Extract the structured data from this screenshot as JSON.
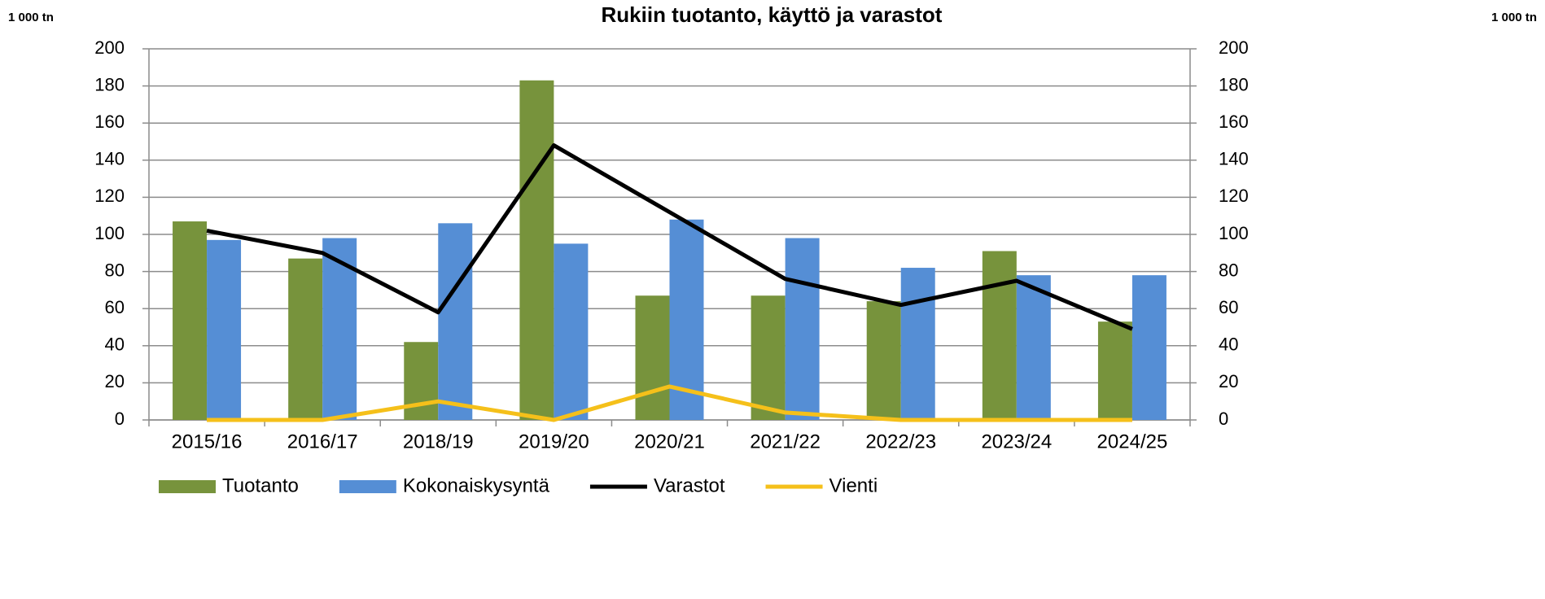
{
  "chart_data": {
    "type": "bar",
    "title": "Rukiin tuotanto, käyttö ja varastot",
    "y_label": "1 000 tn",
    "y2_label": "1 000 tn",
    "categories": [
      "2015/16",
      "2016/17",
      "2018/19",
      "2019/20",
      "2020/21",
      "2021/22",
      "2022/23",
      "2023/24",
      "2024/25"
    ],
    "series": [
      {
        "name": "Tuotanto",
        "type": "bar",
        "color": "#77933c",
        "values": [
          107,
          87,
          42,
          183,
          67,
          67,
          64,
          91,
          53
        ]
      },
      {
        "name": "Kokonaiskysyntä",
        "type": "bar",
        "color": "#558ed5",
        "values": [
          97,
          98,
          106,
          95,
          108,
          98,
          82,
          78,
          78
        ]
      },
      {
        "name": "Varastot",
        "type": "line",
        "color": "#000000",
        "values": [
          102,
          90,
          58,
          148,
          112,
          76,
          62,
          75,
          49
        ]
      },
      {
        "name": "Vienti",
        "type": "line",
        "color": "#f5c01a",
        "values": [
          0,
          0,
          10,
          0,
          18,
          4,
          0,
          0,
          0
        ]
      }
    ],
    "ylim": [
      0,
      200
    ],
    "yticks": [
      0,
      20,
      40,
      60,
      80,
      100,
      120,
      140,
      160,
      180,
      200
    ],
    "y2lim": [
      0,
      200
    ],
    "y2ticks": [
      0,
      20,
      40,
      60,
      80,
      100,
      120,
      140,
      160,
      180,
      200
    ],
    "grid": true,
    "legend": "bottom"
  }
}
